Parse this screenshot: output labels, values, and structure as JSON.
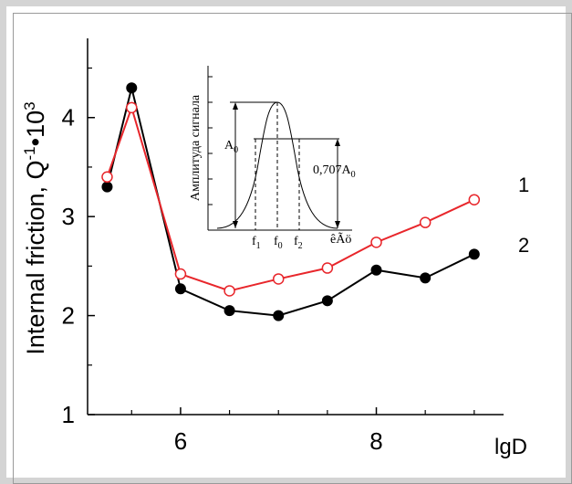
{
  "chart_data": {
    "type": "line",
    "xlabel": "lgD",
    "ylabel": "Internal friction, Q",
    "ylabel_sup1": "-1",
    "ylabel_mid": "•10",
    "ylabel_sup2": "3",
    "xlim": [
      5.05,
      9.3
    ],
    "ylim": [
      1,
      4.8
    ],
    "xticks": [
      6,
      8
    ],
    "yticks": [
      1,
      2,
      3,
      4
    ],
    "series": [
      {
        "name": "1",
        "label": "1",
        "color": "#e8262b",
        "marker": "open-circle",
        "x": [
          5.25,
          5.5,
          6.0,
          6.5,
          7.0,
          7.5,
          8.0,
          8.5,
          9.0
        ],
        "y": [
          3.4,
          4.1,
          2.42,
          2.25,
          2.37,
          2.48,
          2.74,
          2.94,
          3.17
        ]
      },
      {
        "name": "2",
        "label": "2",
        "color": "#000000",
        "marker": "filled-circle",
        "x": [
          5.25,
          5.5,
          6.0,
          6.5,
          7.0,
          7.5,
          8.0,
          8.5,
          9.0
        ],
        "y": [
          3.3,
          4.3,
          2.27,
          2.05,
          2.0,
          2.15,
          2.46,
          2.38,
          2.62
        ]
      }
    ],
    "inset": {
      "ylabel": "Амплитуда сигнала",
      "a0_label": "A",
      "a0_sub": "0",
      "level_label": "0,707A",
      "level_sub": "0",
      "f1_label": "f",
      "f1_sub": "1",
      "f0_label": "f",
      "f0_sub": "0",
      "f2_label": "f",
      "f2_sub": "2",
      "x_axis_label": "êÃö"
    }
  }
}
